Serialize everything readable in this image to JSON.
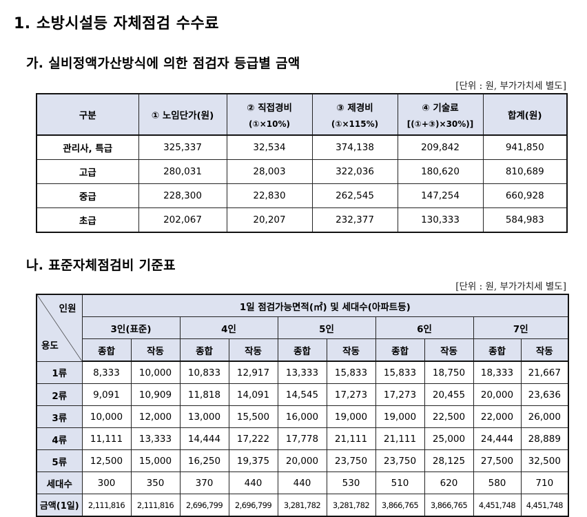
{
  "doc": {
    "title": "1. 소방시설등 자체점검 수수료",
    "sectionA": "가. 실비정액가산방식에 의한 점검자 등급별 금액",
    "sectionB": "나. 표준자체점검비 기준표",
    "unitA": "[단위 : 원, 부가가치세 별도]",
    "unitB": "[단위 : 원, 부가가치세 별도]"
  },
  "tableA": {
    "headers": {
      "grade": "구분",
      "labor": "① 노임단가(원)",
      "direct": "② 직접경비",
      "direct_formula": "(①×10%)",
      "overhead": "③ 제경비",
      "overhead_formula": "(①×115%)",
      "tech": "④ 기술료",
      "tech_formula": "[(①+③)×30%)]",
      "total": "합계(원)"
    },
    "rows": [
      {
        "grade": "관리사, 특급",
        "labor": "325,337",
        "direct": "32,534",
        "overhead": "374,138",
        "tech": "209,842",
        "total": "941,850"
      },
      {
        "grade": "고급",
        "labor": "280,031",
        "direct": "28,003",
        "overhead": "322,036",
        "tech": "180,620",
        "total": "810,689"
      },
      {
        "grade": "중급",
        "labor": "228,300",
        "direct": "22,830",
        "overhead": "262,545",
        "tech": "147,254",
        "total": "660,928"
      },
      {
        "grade": "초급",
        "labor": "202,067",
        "direct": "20,207",
        "overhead": "232,377",
        "tech": "130,333",
        "total": "584,983"
      }
    ]
  },
  "tableB": {
    "corner_top": "인원",
    "corner_bottom": "용도",
    "span_header": "1일 점검가능면적(㎡) 및 세대수(아파트등)",
    "groups": [
      "3인(표준)",
      "4인",
      "5인",
      "6인",
      "7인"
    ],
    "sub_headers": [
      "종합",
      "작동"
    ],
    "rows": [
      {
        "label": "1류",
        "values": [
          "8,333",
          "10,000",
          "10,833",
          "12,917",
          "13,333",
          "15,833",
          "15,833",
          "18,750",
          "18,333",
          "21,667"
        ]
      },
      {
        "label": "2류",
        "values": [
          "9,091",
          "10,909",
          "11,818",
          "14,091",
          "14,545",
          "17,273",
          "17,273",
          "20,455",
          "20,000",
          "23,636"
        ]
      },
      {
        "label": "3류",
        "values": [
          "10,000",
          "12,000",
          "13,000",
          "15,500",
          "16,000",
          "19,000",
          "19,000",
          "22,500",
          "22,000",
          "26,000"
        ]
      },
      {
        "label": "4류",
        "values": [
          "11,111",
          "13,333",
          "14,444",
          "17,222",
          "17,778",
          "21,111",
          "21,111",
          "25,000",
          "24,444",
          "28,889"
        ]
      },
      {
        "label": "5류",
        "values": [
          "12,500",
          "15,000",
          "16,250",
          "19,375",
          "20,000",
          "23,750",
          "23,750",
          "28,125",
          "27,500",
          "32,500"
        ]
      },
      {
        "label": "세대수",
        "values": [
          "300",
          "350",
          "370",
          "440",
          "440",
          "530",
          "510",
          "620",
          "580",
          "710"
        ]
      },
      {
        "label": "금액(1일)",
        "values": [
          "2,111,816",
          "2,111,816",
          "2,696,799",
          "2,696,799",
          "3,281,782",
          "3,281,782",
          "3,866,765",
          "3,866,765",
          "4,451,748",
          "4,451,748"
        ]
      }
    ]
  }
}
